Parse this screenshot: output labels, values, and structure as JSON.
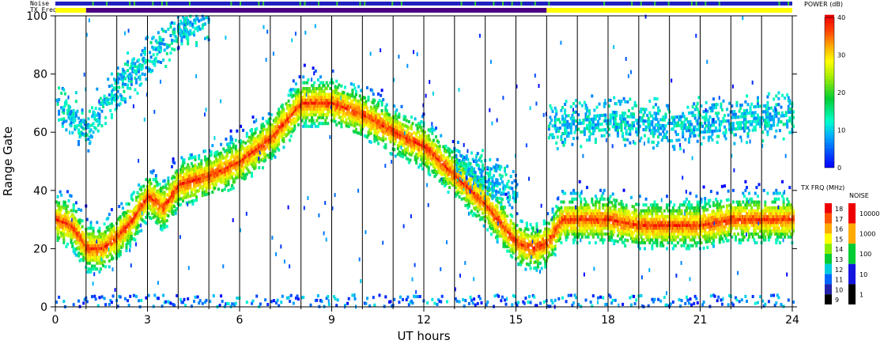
{
  "chart_data": {
    "type": "heatmap",
    "xlabel": "UT hours",
    "ylabel": "Range Gate",
    "xlim": [
      0,
      24
    ],
    "ylim": [
      0,
      100
    ],
    "xticks": [
      0,
      3,
      6,
      9,
      12,
      15,
      18,
      21,
      24
    ],
    "yticks": [
      0,
      20,
      40,
      60,
      80,
      100
    ],
    "hour_lines": [
      1,
      2,
      3,
      4,
      5,
      6,
      7,
      8,
      9,
      10,
      11,
      12,
      13,
      14,
      15,
      16,
      17,
      18,
      19,
      20,
      21,
      22,
      23
    ],
    "top_bars": {
      "noise_label": "Noise",
      "txfreq_label": "TX Freq",
      "txfreq_segments": [
        {
          "start": 0,
          "end": 1,
          "color": "#ffff00"
        },
        {
          "start": 1,
          "end": 16,
          "color": "#4b0082"
        },
        {
          "start": 16,
          "end": 24,
          "color": "#ffff00"
        }
      ]
    },
    "echo_bands": [
      {
        "name": "main",
        "points": [
          [
            0,
            30
          ],
          [
            0.5,
            28
          ],
          [
            1,
            20
          ],
          [
            1.5,
            20
          ],
          [
            2,
            24
          ],
          [
            2.5,
            30
          ],
          [
            3,
            38
          ],
          [
            3.5,
            34
          ],
          [
            4,
            42
          ],
          [
            5,
            45
          ],
          [
            6,
            50
          ],
          [
            7,
            58
          ],
          [
            8,
            70
          ],
          [
            9,
            70
          ],
          [
            10,
            66
          ],
          [
            11,
            60
          ],
          [
            12,
            55
          ],
          [
            13,
            45
          ],
          [
            14,
            35
          ],
          [
            15,
            22
          ],
          [
            15.5,
            20
          ],
          [
            16,
            22
          ],
          [
            16.5,
            30
          ],
          [
            17,
            30
          ],
          [
            18,
            30
          ],
          [
            19,
            28
          ],
          [
            20,
            28
          ],
          [
            21,
            28
          ],
          [
            22,
            30
          ],
          [
            23,
            30
          ],
          [
            24,
            30
          ]
        ]
      },
      {
        "name": "upper",
        "points": [
          [
            0,
            70
          ],
          [
            1,
            60
          ],
          [
            2,
            75
          ],
          [
            3,
            85
          ],
          [
            4,
            95
          ],
          [
            5,
            100
          ]
        ]
      },
      {
        "name": "late",
        "points": [
          [
            16,
            62
          ],
          [
            18,
            64
          ],
          [
            20,
            62
          ],
          [
            22,
            64
          ],
          [
            24,
            66
          ]
        ]
      },
      {
        "name": "evening",
        "points": [
          [
            13,
            50
          ],
          [
            14,
            44
          ],
          [
            15,
            40
          ]
        ]
      }
    ],
    "power_colorbar": {
      "title": "POWER (dB)",
      "ticks": [
        0,
        10,
        20,
        30,
        40
      ],
      "range": [
        0,
        40
      ]
    },
    "txfreq_colorbar": {
      "title": "TX FRQ (MHz)",
      "labels": [
        "18",
        "17",
        "16",
        "15",
        "14",
        "13",
        "12",
        "11",
        "10",
        "9"
      ]
    },
    "noise_colorbar": {
      "title": "NOISE",
      "labels": [
        "10000",
        "1000",
        "100",
        "10",
        "1"
      ]
    }
  }
}
